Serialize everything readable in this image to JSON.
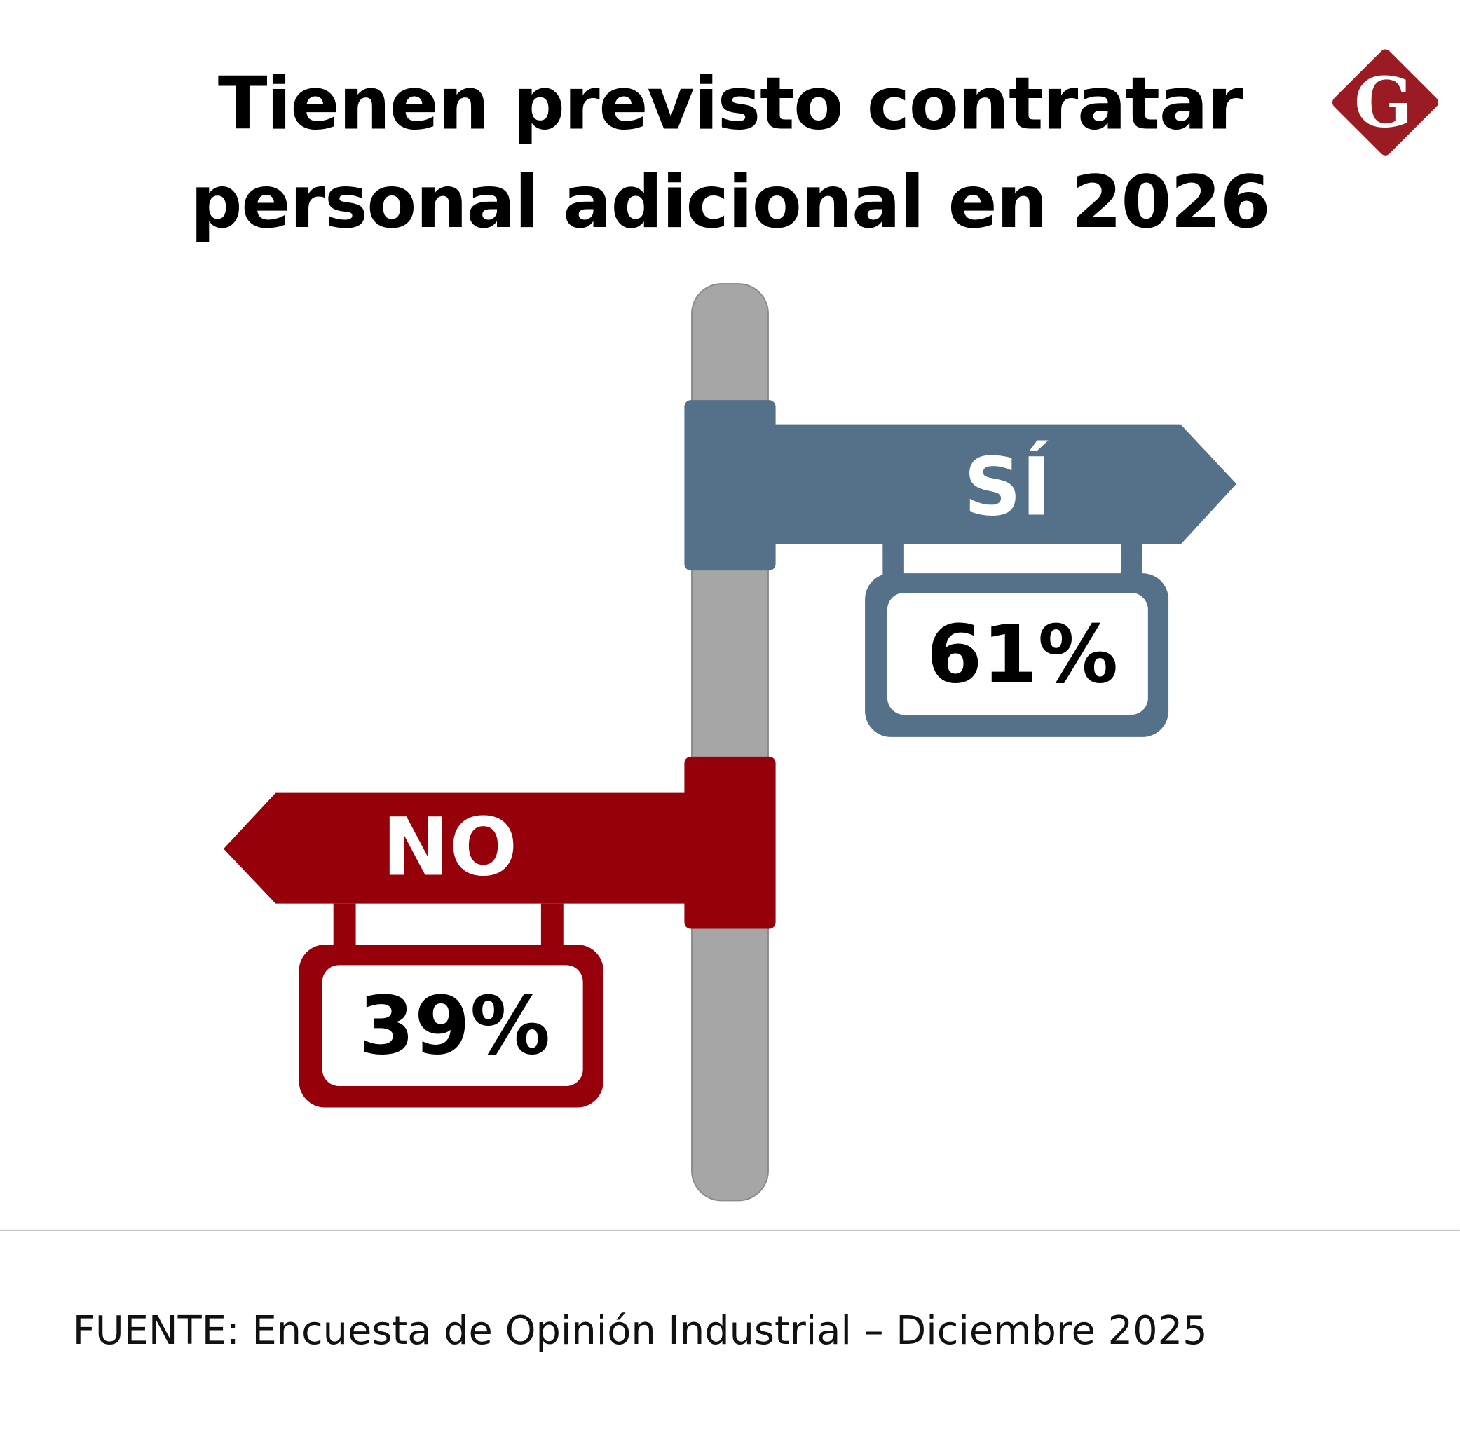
{
  "title_lines": [
    "Tienen previsto contratar",
    "personal adicional en 2026"
  ],
  "logo": {
    "letter": "G",
    "color": "#9b1b24"
  },
  "source": "FUENTE: Encuesta de Opinión Industrial – Diciembre 2025",
  "colors": {
    "si": "#557089",
    "no": "#96000a",
    "pole": "#a6a6a6"
  },
  "chart_data": {
    "type": "bar",
    "title": "Tienen previsto contratar personal adicional en 2026",
    "categories": [
      "SÍ",
      "NO"
    ],
    "values": [
      61,
      39
    ],
    "value_labels": [
      "61%",
      "39%"
    ],
    "unit": "%"
  }
}
